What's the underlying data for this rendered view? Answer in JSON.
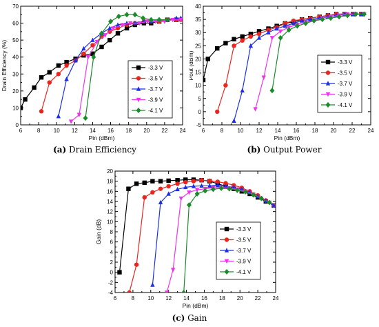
{
  "series_meta": [
    {
      "name": "-3.3 V",
      "color": "#000000",
      "marker": "square"
    },
    {
      "name": "-3.5 V",
      "color": "#e8251f",
      "marker": "circle"
    },
    {
      "name": "-3.7 V",
      "color": "#1c2fe6",
      "marker": "triangle-up"
    },
    {
      "name": "-3.9 V",
      "color": "#ee33ee",
      "marker": "triangle-down"
    },
    {
      "name": "-4.1 V",
      "color": "#1a8a2a",
      "marker": "diamond"
    }
  ],
  "captions": [
    {
      "tag": "(a)",
      "text": "Drain Efficiency"
    },
    {
      "tag": "(b)",
      "text": "Output Power"
    },
    {
      "tag": "(c)",
      "text": "Gain"
    }
  ],
  "chart_data": [
    {
      "type": "line",
      "title": "",
      "xlabel": "Pin (dBm)",
      "ylabel": "Drain Efficiency (%)",
      "xlim": [
        6,
        24
      ],
      "ylim": [
        0,
        70
      ],
      "xticks": [
        6,
        8,
        10,
        12,
        14,
        16,
        18,
        20,
        22,
        24
      ],
      "yticks": [
        0,
        10,
        20,
        30,
        40,
        50,
        60,
        70
      ],
      "legend_position": "center-right",
      "series": [
        {
          "name": "-3.3 V",
          "x": [
            6,
            6.5,
            7.5,
            8.3,
            9.2,
            10.2,
            11.1,
            12.1,
            13.0,
            14.0,
            15.0,
            15.9,
            16.8,
            17.8,
            18.7,
            19.7,
            20.5,
            21.4,
            22.3,
            23.3
          ],
          "y": [
            10,
            15,
            22,
            28,
            31,
            35,
            37,
            39,
            41,
            42,
            46,
            50,
            54,
            57,
            59,
            60,
            60,
            61,
            62,
            62
          ]
        },
        {
          "name": "-3.5 V",
          "x": [
            8.3,
            9.2,
            10.2,
            11.1,
            12.1,
            13.0,
            14.0,
            15.0,
            15.9,
            16.8,
            17.8,
            18.7,
            19.7,
            20.5,
            21.4,
            22.3,
            23.3,
            23.8
          ],
          "y": [
            8,
            25,
            30,
            35,
            38,
            42,
            47,
            52,
            55,
            57,
            59,
            60,
            61,
            61,
            61,
            62,
            62,
            62
          ]
        },
        {
          "name": "-3.7 V",
          "x": [
            10.2,
            11.1,
            12.1,
            13.0,
            14.0,
            15.0,
            15.9,
            16.8,
            17.8,
            18.7,
            19.7,
            20.5,
            21.4,
            22.3,
            23.3,
            23.8
          ],
          "y": [
            5,
            27,
            38,
            45,
            50,
            54,
            57,
            59,
            60,
            60,
            61,
            61,
            62,
            62,
            63,
            63
          ]
        },
        {
          "name": "-3.9 V",
          "x": [
            11.6,
            12.5,
            13.5,
            14.5,
            15.4,
            16.3,
            17.3,
            18.2,
            19.2,
            20.1,
            21.0,
            22.0,
            22.9,
            23.8
          ],
          "y": [
            2,
            6,
            40,
            49,
            53,
            57,
            59,
            60,
            60,
            61,
            61,
            61,
            62,
            62
          ]
        },
        {
          "name": "-4.1 V",
          "x": [
            13.2,
            14.1,
            15.0,
            16.0,
            16.9,
            17.8,
            18.7,
            19.6,
            20.5,
            21.4,
            22.3
          ],
          "y": [
            4,
            40,
            54,
            61,
            64,
            65,
            65,
            63,
            62,
            62,
            62
          ]
        }
      ]
    },
    {
      "type": "line",
      "title": "",
      "xlabel": "Pin (dBm)",
      "ylabel": "Pout (dBm)",
      "xlim": [
        6,
        24
      ],
      "ylim": [
        -5,
        40
      ],
      "xticks": [
        6,
        8,
        10,
        12,
        14,
        16,
        18,
        20,
        22,
        24
      ],
      "yticks": [
        -5,
        0,
        5,
        10,
        15,
        20,
        25,
        30,
        35,
        40
      ],
      "legend_position": "bottom-right",
      "series": [
        {
          "name": "-3.3 V",
          "x": [
            6,
            6.5,
            7.5,
            8.4,
            9.3,
            10.2,
            11.1,
            12.0,
            13.0,
            13.9,
            14.8,
            15.7,
            16.6,
            17.5,
            18.5,
            19.4,
            20.3,
            21.2,
            22.1,
            23.0
          ],
          "y": [
            12,
            20,
            24,
            26,
            27.5,
            28.5,
            29.5,
            30.5,
            31.5,
            32.5,
            33.5,
            34,
            35,
            35.5,
            36,
            36.5,
            37,
            37,
            37,
            37
          ]
        },
        {
          "name": "-3.5 V",
          "x": [
            7.5,
            8.4,
            9.3,
            10.2,
            11.1,
            12.0,
            13.0,
            13.9,
            14.8,
            15.7,
            16.6,
            17.5,
            18.5,
            19.4,
            20.3,
            21.2,
            22.1,
            23.0
          ],
          "y": [
            0,
            10,
            25,
            27,
            28.5,
            29.5,
            31,
            32,
            33.5,
            34.5,
            35,
            35.5,
            36,
            36.5,
            37,
            37,
            37,
            37
          ]
        },
        {
          "name": "-3.7 V",
          "x": [
            9.3,
            10.2,
            11.1,
            12.0,
            13.0,
            13.9,
            14.8,
            15.7,
            16.6,
            17.5,
            18.5,
            19.4,
            20.3,
            21.2,
            22.1,
            23.0
          ],
          "y": [
            -3.5,
            8,
            25,
            28,
            30,
            31.5,
            32.5,
            33.5,
            34.5,
            35,
            35.5,
            36,
            36.5,
            37,
            37,
            37
          ]
        },
        {
          "name": "-3.9 V",
          "x": [
            11.6,
            12.5,
            13.4,
            14.3,
            15.2,
            16.1,
            17.0,
            17.9,
            18.8,
            19.7,
            20.6,
            21.5,
            22.4,
            23.3
          ],
          "y": [
            1,
            13,
            28,
            30.5,
            32,
            33,
            34,
            34.5,
            35.5,
            36,
            36.5,
            37,
            37,
            37
          ]
        },
        {
          "name": "-4.1 V",
          "x": [
            13.4,
            14.3,
            15.2,
            16.1,
            17.0,
            17.9,
            18.8,
            19.7,
            20.6,
            21.5,
            22.4,
            23.3
          ],
          "y": [
            8,
            28,
            31,
            32.5,
            33.5,
            34.5,
            35,
            35.5,
            36,
            36.5,
            37,
            37
          ]
        }
      ]
    },
    {
      "type": "line",
      "title": "",
      "xlabel": "Pin (dBm)",
      "ylabel": "Gain (dB)",
      "xlim": [
        6,
        24
      ],
      "ylim": [
        -4,
        20
      ],
      "xticks": [
        6,
        8,
        10,
        12,
        14,
        16,
        18,
        20,
        22,
        24
      ],
      "yticks": [
        -4,
        -2,
        0,
        2,
        4,
        6,
        8,
        10,
        12,
        14,
        16,
        18,
        20
      ],
      "legend_position": "bottom-right",
      "series": [
        {
          "name": "-3.3 V",
          "x": [
            6.5,
            7.5,
            8.4,
            9.3,
            10.2,
            11.1,
            12.0,
            13.0,
            13.9,
            14.8,
            15.7,
            16.6,
            17.5,
            18.4,
            19.3,
            20.2,
            21.1,
            22.0,
            22.9,
            23.8
          ],
          "y": [
            0,
            16.5,
            17.5,
            17.7,
            18,
            18,
            18.1,
            18.2,
            18.3,
            18.3,
            18.2,
            18,
            17.5,
            17,
            16.5,
            16,
            15.5,
            14.8,
            14,
            13.2
          ]
        },
        {
          "name": "-3.5 V",
          "x": [
            7.6,
            8.4,
            9.3,
            10.2,
            11.1,
            12.0,
            13.0,
            13.9,
            14.8,
            15.7,
            16.6,
            17.5,
            18.4,
            19.3,
            20.2,
            21.1,
            22.0,
            22.9,
            23.8
          ],
          "y": [
            -4,
            1.5,
            14.8,
            15.8,
            16.5,
            17,
            17.5,
            17.8,
            18,
            18.2,
            18.1,
            17.9,
            17.6,
            17.2,
            16.7,
            16,
            15.2,
            14.2,
            13.2
          ]
        },
        {
          "name": "-3.7 V",
          "x": [
            10.2,
            11.1,
            12.0,
            13.0,
            13.9,
            14.8,
            15.7,
            16.6,
            17.5,
            18.4,
            19.3,
            20.2,
            21.1,
            22.0,
            22.9,
            23.8
          ],
          "y": [
            -2.5,
            13.8,
            15.5,
            16.4,
            16.8,
            17,
            17.1,
            17.1,
            17.2,
            17,
            16.8,
            16.4,
            15.8,
            15,
            14.2,
            13.2
          ]
        },
        {
          "name": "-3.9 V",
          "x": [
            11.8,
            12.5,
            13.4,
            14.3,
            15.2,
            16.1,
            17.0,
            17.9,
            18.8,
            19.7,
            20.6,
            21.5,
            22.4,
            23.3
          ],
          "y": [
            -4,
            0.5,
            14.6,
            15.8,
            16.3,
            16.5,
            16.7,
            16.8,
            16.6,
            16.4,
            16,
            15.4,
            14.6,
            13.8
          ]
        },
        {
          "name": "-4.1 V",
          "x": [
            13.7,
            14.3,
            15.2,
            16.1,
            17.0,
            17.9,
            18.8,
            19.7,
            20.6,
            21.5,
            22.4,
            23.3
          ],
          "y": [
            -4,
            13.3,
            15.5,
            16.1,
            16.4,
            16.6,
            16.5,
            16.2,
            15.9,
            15.3,
            14.6,
            13.8
          ]
        }
      ]
    }
  ]
}
